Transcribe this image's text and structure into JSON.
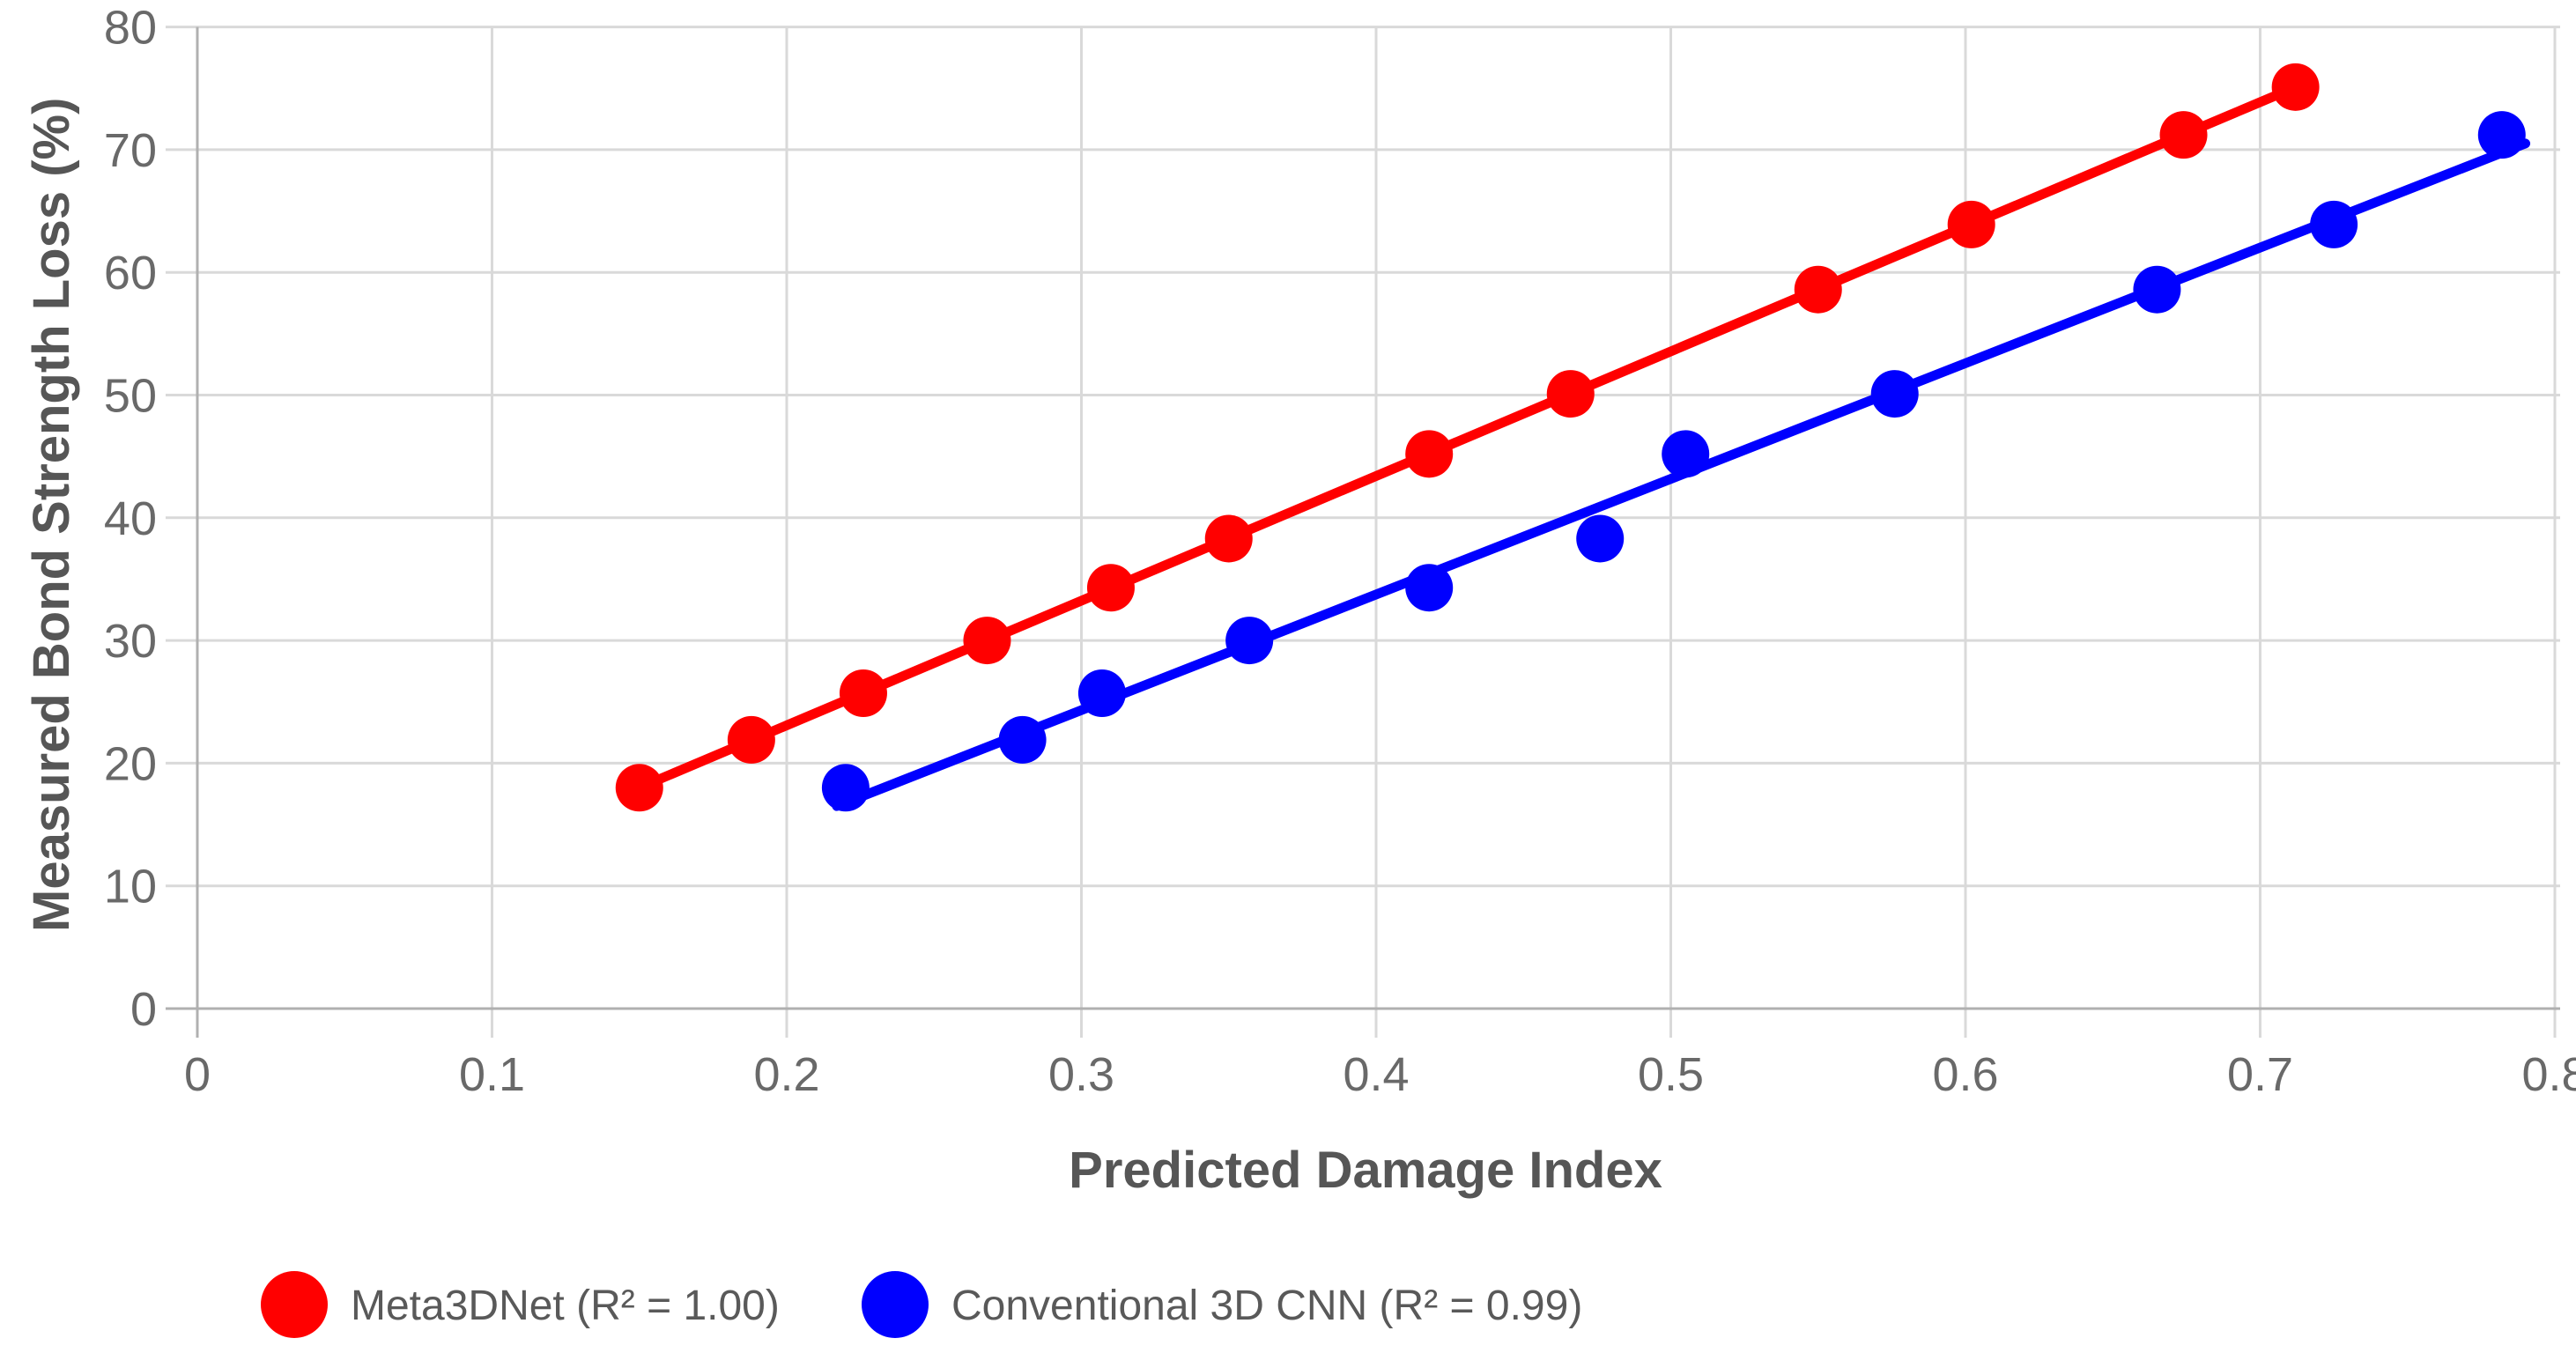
{
  "figure": {
    "background_color": "#ffffff",
    "text_color": "#595959",
    "tick_color": "#696969",
    "gridline_color": "#d9d9d9",
    "axis_line_color": "#b0b0b0"
  },
  "chart_data": {
    "type": "scatter",
    "title": "",
    "xlabel": "Predicted Damage Index",
    "ylabel": "Measured Bond Strength Loss (%)",
    "xlim": [
      0,
      0.8
    ],
    "ylim": [
      0,
      80
    ],
    "grid": true,
    "legend_position": "bottom-left",
    "x_ticks": {
      "values": [
        0,
        0.1,
        0.2,
        0.3,
        0.4,
        0.5,
        0.6,
        0.7,
        0.8
      ],
      "labels": [
        "0",
        "0.1",
        "0.2",
        "0.3",
        "0.4",
        "0.5",
        "0.6",
        "0.7",
        "0.8"
      ]
    },
    "y_ticks": {
      "values": [
        0,
        10,
        20,
        30,
        40,
        50,
        60,
        70,
        80
      ],
      "labels": [
        "0",
        "10",
        "20",
        "30",
        "40",
        "50",
        "60",
        "70",
        "80"
      ]
    },
    "series": [
      {
        "name": "Meta3DNet (R² = 1.00)",
        "color": "#ff0000",
        "marker": "circle",
        "r_squared": "1.00",
        "points": [
          [
            0.15,
            18.0
          ],
          [
            0.188,
            21.9
          ],
          [
            0.226,
            25.7
          ],
          [
            0.268,
            30.0
          ],
          [
            0.31,
            34.3
          ],
          [
            0.35,
            38.3
          ],
          [
            0.418,
            45.2
          ],
          [
            0.466,
            50.1
          ],
          [
            0.55,
            58.6
          ],
          [
            0.602,
            63.9
          ],
          [
            0.674,
            71.2
          ],
          [
            0.712,
            75.1
          ]
        ],
        "trendline": {
          "x1": 0.147,
          "y1": 17.7,
          "x2": 0.716,
          "y2": 75.5
        }
      },
      {
        "name": "Conventional 3D CNN (R² = 0.99)",
        "color": "#0000ff",
        "marker": "circle",
        "r_squared": "0.99",
        "points": [
          [
            0.22,
            18.0
          ],
          [
            0.28,
            21.9
          ],
          [
            0.307,
            25.7
          ],
          [
            0.357,
            30.0
          ],
          [
            0.418,
            34.3
          ],
          [
            0.476,
            38.3
          ],
          [
            0.505,
            45.2
          ],
          [
            0.576,
            50.1
          ],
          [
            0.665,
            58.6
          ],
          [
            0.725,
            63.9
          ],
          [
            0.782,
            71.2
          ]
        ],
        "trendline": {
          "x1": 0.217,
          "y1": 16.5,
          "x2": 0.79,
          "y2": 70.5
        }
      }
    ]
  }
}
